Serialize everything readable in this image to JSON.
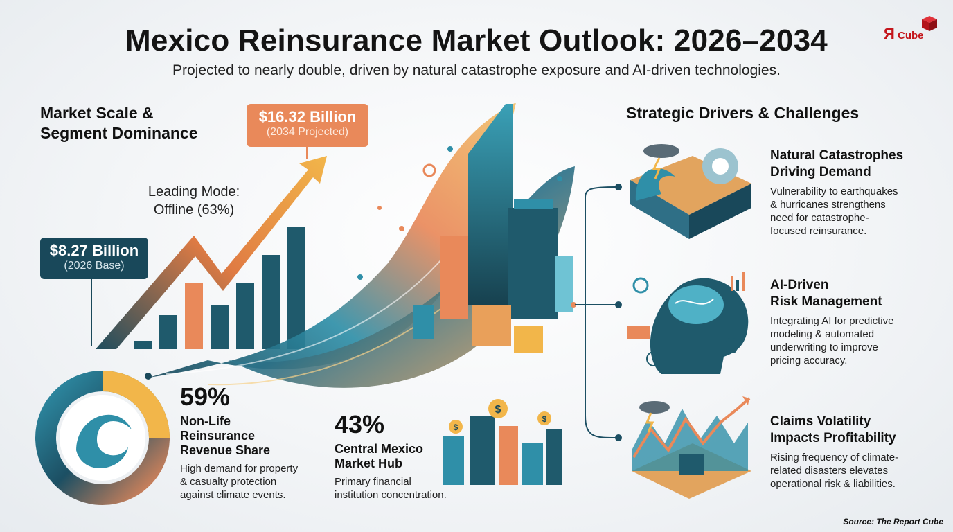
{
  "header": {
    "title": "Mexico Reinsurance Market Outlook: 2026–2034",
    "subtitle": "Projected to nearly double, driven by natural catastrophe exposure and AI-driven technologies.",
    "logo_text_r": "Я",
    "logo_text_cube": "Cube"
  },
  "left": {
    "heading_line1": "Market Scale &",
    "heading_line2": "Segment Dominance",
    "callout_2034": {
      "value": "$16.32 Billion",
      "note": "(2034 Projected)"
    },
    "callout_2026": {
      "value": "$8.27 Billion",
      "note": "(2026 Base)"
    },
    "mode_line1": "Leading Mode:",
    "mode_line2": "Offline (63%)",
    "stat_59": {
      "value": "59%",
      "head1": "Non-Life",
      "head2": "Reinsurance",
      "head3": "Revenue Share",
      "body1": "High demand for property",
      "body2": "& casualty protection",
      "body3": "against climate events."
    },
    "stat_43": {
      "value": "43%",
      "head1": "Central Mexico",
      "head2": "Market Hub",
      "body1": "Primary financial",
      "body2": "institution concentration."
    }
  },
  "right": {
    "heading": "Strategic Drivers & Challenges",
    "drivers": [
      {
        "head1": "Natural Catastrophes",
        "head2": "Driving Demand",
        "body1": "Vulnerability to earthquakes",
        "body2": "& hurricanes strengthens",
        "body3": "need for catastrophe-",
        "body4": "focused reinsurance.",
        "icon": "hurricane-wave-icon"
      },
      {
        "head1": "AI-Driven",
        "head2": "Risk Management",
        "body1": "Integrating AI for predictive",
        "body2": "modeling & automated",
        "body3": "underwriting to improve",
        "body4": "pricing accuracy.",
        "icon": "ai-brain-icon"
      },
      {
        "head1": "Claims Volatility",
        "head2": "Impacts Profitability",
        "body1": "Rising frequency of climate-",
        "body2": "related disasters elevates",
        "body3": "operational risk & liabilities.",
        "icon": "volatility-chart-icon"
      }
    ]
  },
  "footer": {
    "source": "Source: The Report Cube"
  },
  "colors": {
    "navy": "#19485a",
    "orange": "#e9895a",
    "teal": "#2f8fa8",
    "brand_red": "#c4161c"
  }
}
